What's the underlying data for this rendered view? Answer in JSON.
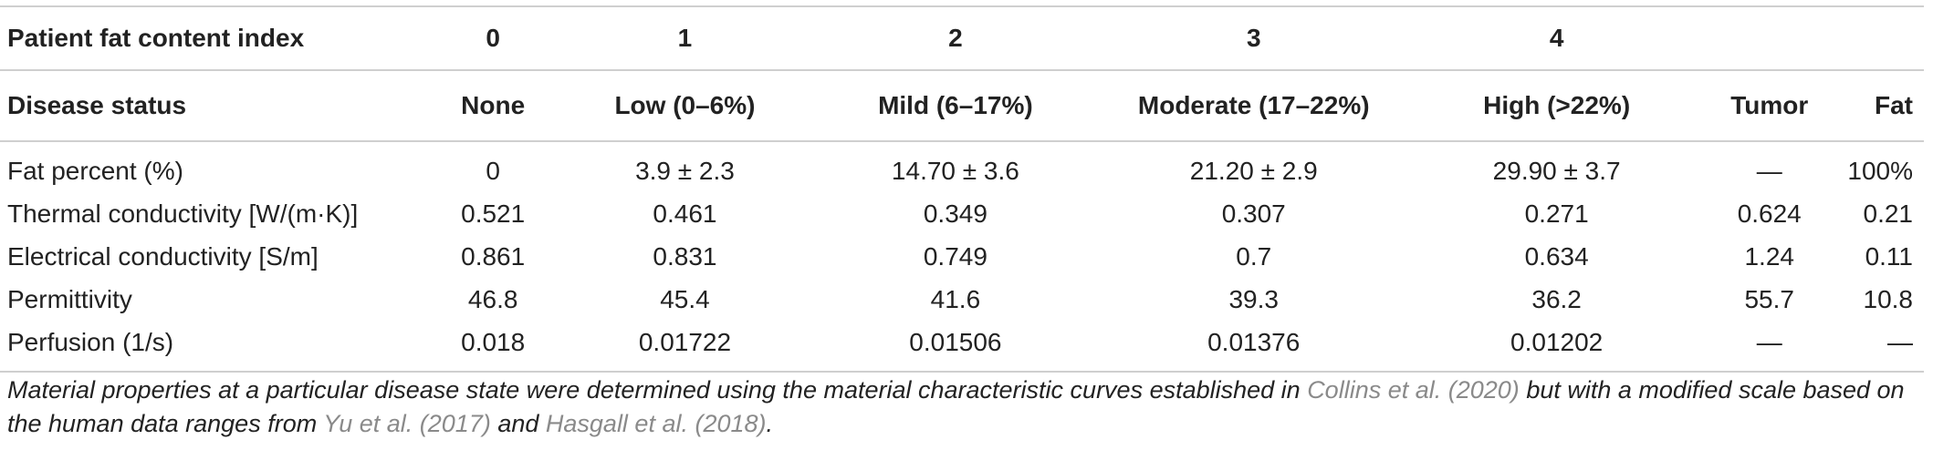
{
  "table": {
    "header_row1": [
      "Patient fat content index",
      "0",
      "1",
      "2",
      "3",
      "4",
      "",
      ""
    ],
    "header_row2": [
      "Disease status",
      "None",
      "Low (0–6%)",
      "Mild (6–17%)",
      "Moderate (17–22%)",
      "High (>22%)",
      "Tumor",
      "Fat"
    ],
    "rows": [
      [
        "Fat percent (%)",
        "0",
        "3.9 ± 2.3",
        "14.70 ± 3.6",
        "21.20 ± 2.9",
        "29.90 ± 3.7",
        "—",
        "100%"
      ],
      [
        "Thermal conductivity [W/(m·K)]",
        "0.521",
        "0.461",
        "0.349",
        "0.307",
        "0.271",
        "0.624",
        "0.21"
      ],
      [
        "Electrical conductivity [S/m]",
        "0.861",
        "0.831",
        "0.749",
        "0.7",
        "0.634",
        "1.24",
        "0.11"
      ],
      [
        "Permittivity",
        "46.8",
        "45.4",
        "41.6",
        "39.3",
        "36.2",
        "55.7",
        "10.8"
      ],
      [
        "Perfusion (1/s)",
        "0.018",
        "0.01722",
        "0.01506",
        "0.01376",
        "0.01202",
        "—",
        "—"
      ]
    ]
  },
  "caption": {
    "part1": "Material properties at a particular disease state were determined using the material characteristic curves established in ",
    "cite1": "Collins et al. (2020)",
    "part2": " but with a modified scale based on the human data ranges from ",
    "cite2": "Yu et al. (2017)",
    "part3": " and ",
    "cite3": "Hasgall et al. (2018)",
    "part4": "."
  }
}
